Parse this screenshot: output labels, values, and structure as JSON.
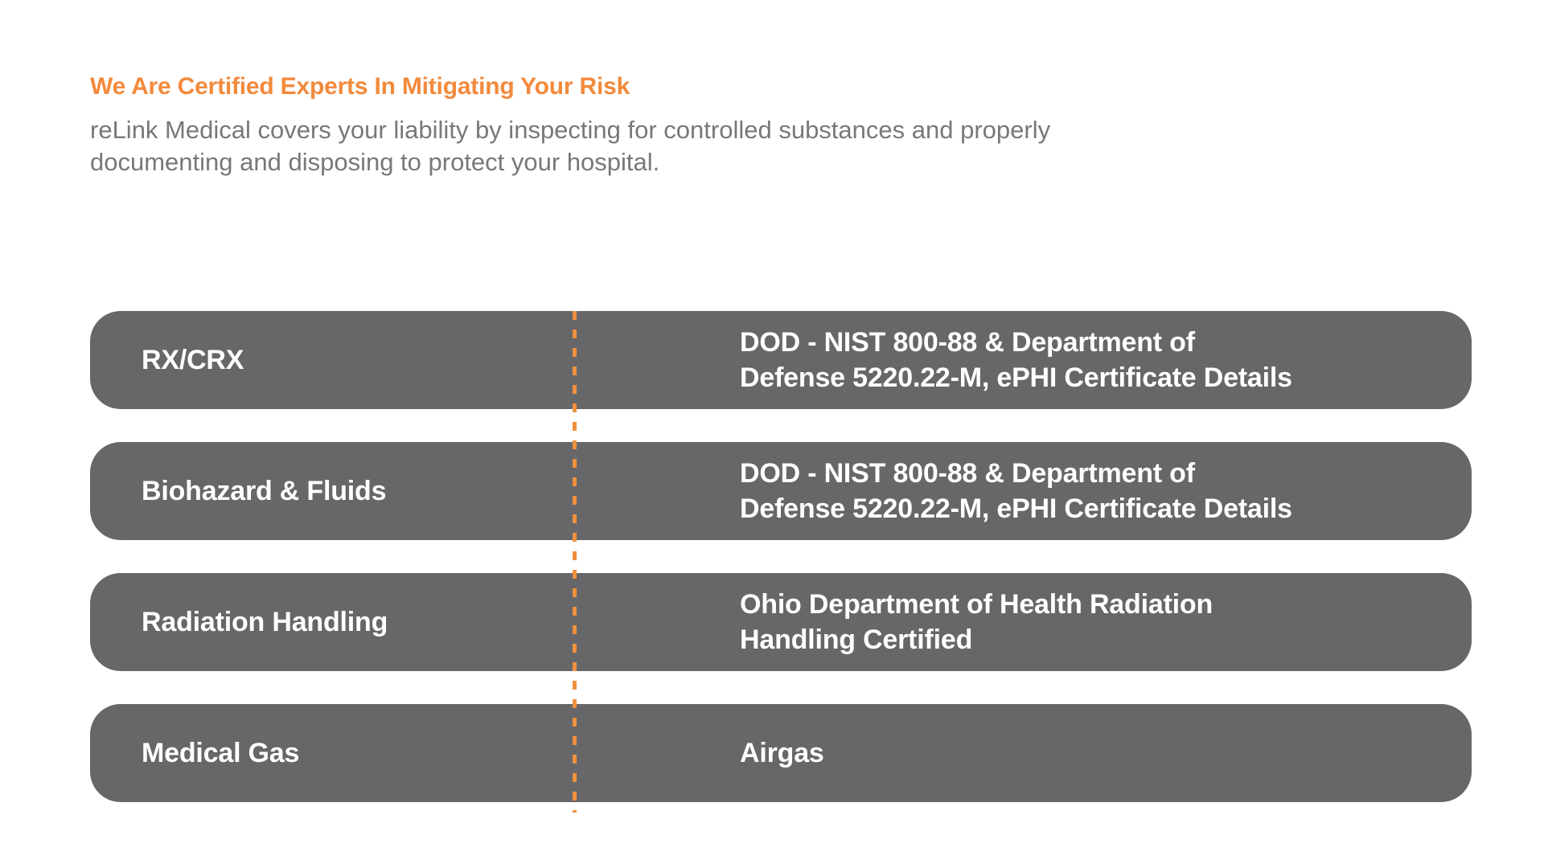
{
  "section": {
    "heading": "We Are Certified Experts In Mitigating Your Risk",
    "intro": "reLink Medical covers your liability by inspecting for controlled substances and properly\ndocumenting and disposing to protect your hospital."
  },
  "colors": {
    "accent_orange": "#F28A3C",
    "divider_orange": "#F0913F",
    "row_background_gray": "#676769",
    "intro_text_gray": "#77787B",
    "row_text": "#FFFFFF",
    "page_background": "#FFFFFF"
  },
  "certification_table": {
    "rows": [
      {
        "category": "RX/CRX",
        "certification": "DOD - NIST 800-88 & Department of\nDefense 5220.22-M, ePHI Certificate Details"
      },
      {
        "category": "Biohazard & Fluids",
        "certification": "DOD - NIST 800-88 & Department of\nDefense 5220.22-M, ePHI Certificate Details"
      },
      {
        "category": "Radiation Handling",
        "certification": "Ohio Department of Health Radiation\nHandling Certified"
      },
      {
        "category": "Medical Gas",
        "certification": "Airgas"
      }
    ]
  }
}
